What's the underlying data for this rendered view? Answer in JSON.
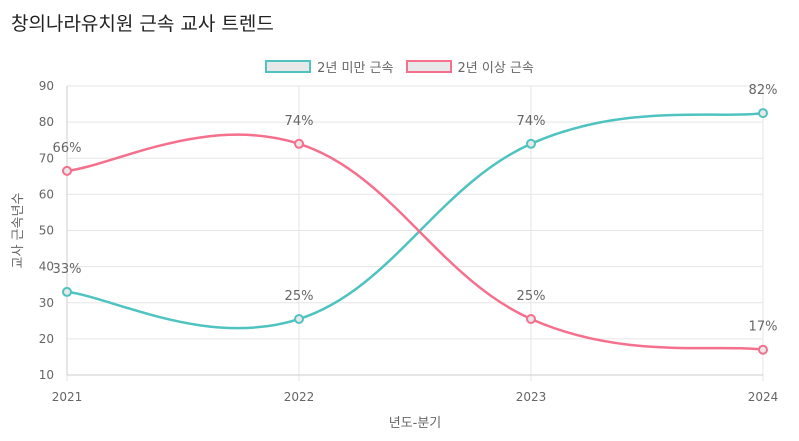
{
  "chart_data": {
    "type": "line",
    "title": "창의나라유치원 근속 교사 트렌드",
    "xlabel": "년도-분기",
    "ylabel": "교사 근속년수",
    "categories": [
      "2021",
      "2022",
      "2023",
      "2024"
    ],
    "ylim": [
      10,
      90
    ],
    "yticks": [
      10,
      20,
      30,
      40,
      50,
      60,
      70,
      80,
      90
    ],
    "grid": true,
    "legend_position": "top",
    "series": [
      {
        "name": "2년 미만 근속",
        "color": "#4fc3c0",
        "values": [
          33,
          25.5,
          74,
          82.5
        ],
        "labels": [
          "33%",
          "25%",
          "74%",
          "82%"
        ]
      },
      {
        "name": "2년 이상 근속",
        "color": "#f5708d",
        "values": [
          66.5,
          74,
          25.5,
          17
        ],
        "labels": [
          "66%",
          "74%",
          "25%",
          "17%"
        ]
      }
    ]
  }
}
